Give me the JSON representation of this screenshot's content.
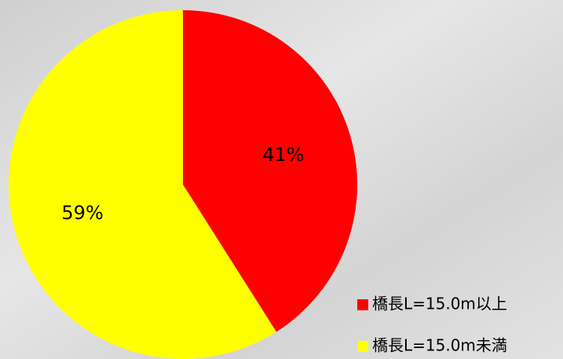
{
  "chart_data": {
    "type": "pie",
    "categories": [
      "橋長L=15.0m以上",
      "橋長L=15.0m未満"
    ],
    "values": [
      41,
      59
    ],
    "value_labels": [
      "41%",
      "59%"
    ],
    "colors": [
      "#ff0000",
      "#ffff00"
    ]
  }
}
